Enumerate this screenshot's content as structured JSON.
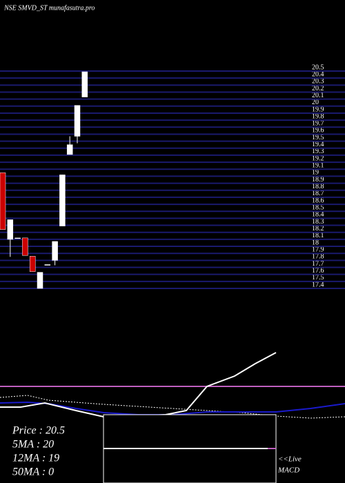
{
  "chart_data": {
    "type": "candlestick",
    "title": "NSE SMVD_ST munafasutra.pro",
    "categories": [
      null,
      null,
      null,
      null,
      null,
      null,
      null,
      null,
      null,
      null,
      null,
      null
    ],
    "open": [
      19.05,
      18.1,
      18.12,
      18.12,
      17.86,
      17.4,
      17.74,
      17.8,
      18.29,
      19.31,
      19.57,
      20.13
    ],
    "high": [
      19.05,
      18.38,
      18.12,
      18.12,
      17.86,
      17.63,
      17.74,
      18.07,
      19.02,
      19.57,
      20.01,
      20.49
    ],
    "low": [
      18.24,
      17.85,
      18.12,
      17.87,
      17.64,
      17.4,
      17.74,
      17.73,
      18.29,
      19.31,
      19.47,
      20.13
    ],
    "close": [
      18.24,
      18.38,
      18.12,
      17.87,
      17.64,
      17.63,
      17.74,
      18.07,
      19.02,
      19.45,
      20.01,
      20.49
    ],
    "up_color": "#ffffff",
    "down_color": "#cc0000",
    "grid_color": "#1a1a6e",
    "ylim": [
      17.4,
      20.5
    ],
    "yticks": [
      17.4,
      17.5,
      17.6,
      17.7,
      17.8,
      17.9,
      18,
      18.1,
      18.2,
      18.3,
      18.4,
      18.5,
      18.6,
      18.7,
      18.8,
      18.9,
      19,
      19.1,
      19.2,
      19.3,
      19.4,
      19.5,
      19.6,
      19.7,
      19.8,
      19.9,
      20,
      20.1,
      20.2,
      20.3,
      20.4,
      20.5
    ],
    "grid": true
  },
  "info": {
    "price": "Price   : 20.5",
    "ma5": "5MA : 20",
    "ma12": "12MA : 19",
    "ma50": "50MA : 0",
    "live": "<<Live",
    "macd": "MACD"
  }
}
